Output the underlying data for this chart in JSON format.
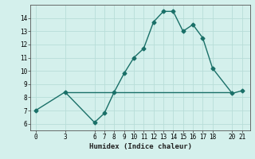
{
  "x": [
    0,
    3,
    6,
    7,
    8,
    9,
    10,
    11,
    12,
    13,
    14,
    15,
    16,
    17,
    18,
    20,
    21
  ],
  "y": [
    7.0,
    8.4,
    6.1,
    6.8,
    8.4,
    9.8,
    11.0,
    11.7,
    13.7,
    14.5,
    14.5,
    13.0,
    13.5,
    12.5,
    10.2,
    8.3,
    8.5
  ],
  "hline_y": 8.4,
  "hline_x_start": 3,
  "hline_x_end": 20,
  "xticks": [
    0,
    3,
    6,
    7,
    8,
    9,
    10,
    11,
    12,
    13,
    14,
    15,
    16,
    17,
    18,
    20,
    21
  ],
  "yticks": [
    6,
    7,
    8,
    9,
    10,
    11,
    12,
    13,
    14
  ],
  "ylim": [
    5.5,
    15.0
  ],
  "xlim": [
    -0.5,
    21.8
  ],
  "xlabel": "Humidex (Indice chaleur)",
  "line_color": "#1a7068",
  "bg_color": "#d4f0ec",
  "grid_color": "#b8ddd8",
  "marker": "D",
  "markersize": 2.5,
  "linewidth": 1.0
}
